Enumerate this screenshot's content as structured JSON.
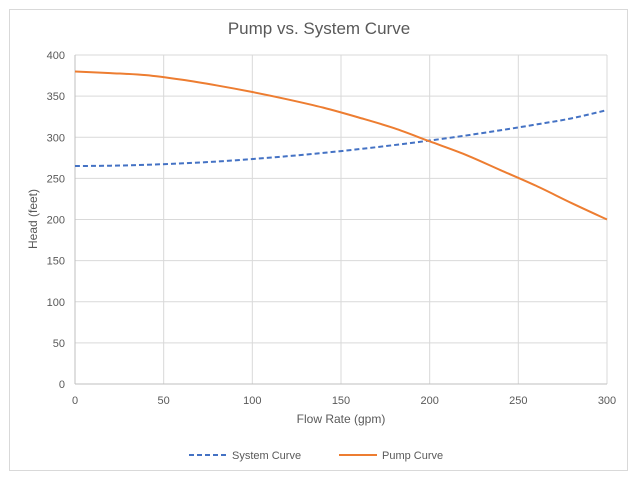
{
  "chart_data": {
    "type": "line",
    "title": "Pump vs. System Curve",
    "xlabel": "Flow Rate (gpm)",
    "ylabel": "Head (feet)",
    "xlim": [
      0,
      300
    ],
    "ylim": [
      0,
      400
    ],
    "x_ticks": [
      0,
      50,
      100,
      150,
      200,
      250,
      300
    ],
    "y_ticks": [
      0,
      50,
      100,
      150,
      200,
      250,
      300,
      350,
      400
    ],
    "grid": "vertical and horizontal",
    "legend_position": "bottom",
    "series": [
      {
        "name": "System Curve",
        "color": "#4472C4",
        "style": "dashed",
        "x": [
          0,
          20,
          40,
          60,
          80,
          100,
          120,
          140,
          160,
          180,
          200,
          220,
          240,
          260,
          280,
          300
        ],
        "y": [
          265,
          265.4,
          266.5,
          268.2,
          270.5,
          273.5,
          277,
          281,
          285.5,
          290.5,
          296,
          302,
          308.5,
          315.5,
          323,
          333
        ]
      },
      {
        "name": "Pump Curve",
        "color": "#ED7D31",
        "style": "solid",
        "x": [
          0,
          20,
          40,
          60,
          80,
          100,
          120,
          140,
          160,
          180,
          200,
          220,
          240,
          260,
          280,
          300
        ],
        "y": [
          380,
          378,
          375.5,
          370,
          363,
          355,
          346,
          336,
          324,
          311,
          295,
          279,
          260,
          241,
          220,
          200
        ]
      }
    ]
  }
}
